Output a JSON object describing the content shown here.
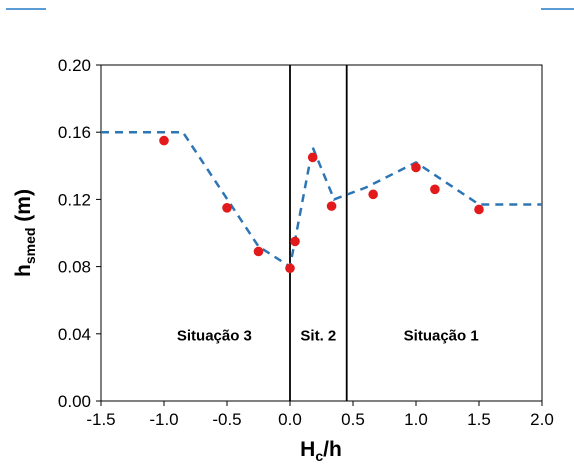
{
  "chart_data": {
    "type": "scatter",
    "xlabel": {
      "main": "H",
      "sub": "c",
      "rest": "/h"
    },
    "ylabel": {
      "main": "h",
      "sub": "smed",
      "rest": " (m)"
    },
    "xlim": [
      -1.5,
      2.0
    ],
    "ylim": [
      0.0,
      0.2
    ],
    "x_ticks": [
      "-1.5",
      "-1.0",
      "-0.5",
      "0.0",
      "0.5",
      "1.0",
      "1.5",
      "2.0"
    ],
    "y_ticks": [
      "0.00",
      "0.04",
      "0.08",
      "0.12",
      "0.16",
      "0.20"
    ],
    "grid": false,
    "series": [
      {
        "kind": "points",
        "color": "#e31a1c",
        "x": [
          -1.0,
          -0.5,
          -0.25,
          0.0,
          0.04,
          0.18,
          0.33,
          0.66,
          1.0,
          1.15,
          1.5
        ],
        "y": [
          0.155,
          0.115,
          0.089,
          0.079,
          0.095,
          0.145,
          0.116,
          0.123,
          0.139,
          0.126,
          0.114
        ]
      },
      {
        "kind": "dashed-line",
        "color": "#2e75b6",
        "x": [
          -1.5,
          -0.85,
          -0.25,
          0.0,
          0.18,
          0.35,
          0.6,
          1.0,
          1.5,
          2.0
        ],
        "y": [
          0.16,
          0.16,
          0.092,
          0.08,
          0.151,
          0.12,
          0.127,
          0.142,
          0.117,
          0.117
        ]
      }
    ],
    "vertical_lines": [
      0.0,
      0.45
    ],
    "region_labels": [
      {
        "text": "Situação 3",
        "x": -0.6,
        "y": 0.036
      },
      {
        "text": "Sit. 2",
        "x": 0.225,
        "y": 0.036
      },
      {
        "text": "Situação 1",
        "x": 1.2,
        "y": 0.036
      }
    ]
  },
  "colors": {
    "accent_line": "#5b9bd5"
  }
}
